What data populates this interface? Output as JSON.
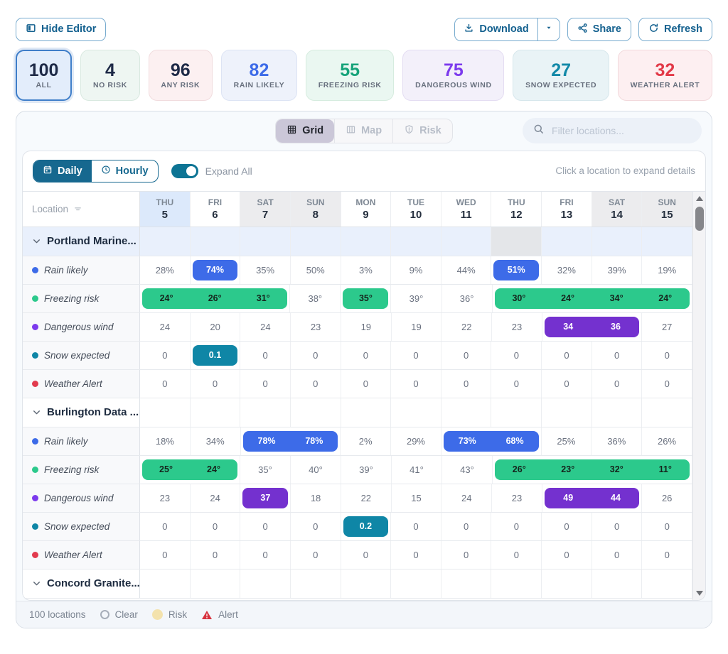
{
  "toolbar": {
    "hide_editor": "Hide Editor",
    "download": "Download",
    "share": "Share",
    "refresh": "Refresh"
  },
  "stats": [
    {
      "value": "100",
      "label": "ALL",
      "num_color": "#1e2a47",
      "bg": "#e3edfb",
      "border": "#3f7ec9",
      "selected": true
    },
    {
      "value": "4",
      "label": "NO RISK",
      "num_color": "#1e2a47",
      "bg": "#eef6f2",
      "border": "#d9e9e0",
      "selected": false
    },
    {
      "value": "96",
      "label": "ANY RISK",
      "num_color": "#1e2a47",
      "bg": "#fcf0f1",
      "border": "#f1dcde",
      "selected": false
    },
    {
      "value": "82",
      "label": "RAIN LIKELY",
      "num_color": "#3d6be8",
      "bg": "#eef2fb",
      "border": "#dde4f4",
      "selected": false
    },
    {
      "value": "55",
      "label": "FREEZING RISK",
      "num_color": "#17a37a",
      "bg": "#eaf7f1",
      "border": "#d6ecdf",
      "selected": false
    },
    {
      "value": "75",
      "label": "DANGEROUS WIND",
      "num_color": "#7c3aed",
      "bg": "#f3f0fa",
      "border": "#e4ddf2",
      "selected": false
    },
    {
      "value": "27",
      "label": "SNOW EXPECTED",
      "num_color": "#1289a8",
      "bg": "#e9f3f6",
      "border": "#d7e7ec",
      "selected": false
    },
    {
      "value": "32",
      "label": "WEATHER ALERT",
      "num_color": "#e23948",
      "bg": "#fdeff1",
      "border": "#f2d9dc",
      "selected": false
    }
  ],
  "view_tabs": [
    {
      "label": "Grid",
      "selected": true
    },
    {
      "label": "Map",
      "selected": false
    },
    {
      "label": "Risk",
      "selected": false
    }
  ],
  "search": {
    "placeholder": "Filter locations..."
  },
  "mode_tabs": [
    {
      "label": "Daily",
      "selected": true
    },
    {
      "label": "Hourly",
      "selected": false
    }
  ],
  "expand_all_label": "Expand All",
  "expand_all_on": true,
  "hint": "Click a location to expand details",
  "grid": {
    "location_header": "Location",
    "days": [
      {
        "name": "THU",
        "num": "5",
        "flag": "today"
      },
      {
        "name": "FRI",
        "num": "6",
        "flag": ""
      },
      {
        "name": "SAT",
        "num": "7",
        "flag": "weekend"
      },
      {
        "name": "SUN",
        "num": "8",
        "flag": "weekend"
      },
      {
        "name": "MON",
        "num": "9",
        "flag": ""
      },
      {
        "name": "TUE",
        "num": "10",
        "flag": ""
      },
      {
        "name": "WED",
        "num": "11",
        "flag": ""
      },
      {
        "name": "THU",
        "num": "12",
        "flag": ""
      },
      {
        "name": "FRI",
        "num": "13",
        "flag": ""
      },
      {
        "name": "SAT",
        "num": "14",
        "flag": "weekend"
      },
      {
        "name": "SUN",
        "num": "15",
        "flag": "weekend"
      }
    ],
    "metrics": {
      "rain": {
        "label": "Rain likely",
        "dot": "#3d6be8",
        "pill_bg": "#3d6be8",
        "pill_text": "#ffffff"
      },
      "freezing": {
        "label": "Freezing risk",
        "dot": "#2cc98c",
        "pill_bg": "#2cc98c",
        "pill_text": "#15241c"
      },
      "wind": {
        "label": "Dangerous wind",
        "dot": "#7c3aed",
        "pill_bg": "#7431cf",
        "pill_text": "#ffffff"
      },
      "snow": {
        "label": "Snow expected",
        "dot": "#0f86a6",
        "pill_bg": "#0f86a6",
        "pill_text": "#ffffff"
      },
      "alert": {
        "label": "Weather Alert",
        "dot": "#e23b4e",
        "pill_bg": "#e23b4e",
        "pill_text": "#ffffff"
      }
    },
    "groups": [
      {
        "name": "Portland Marine...",
        "tint": "#e9f0fc",
        "muted_col": 7,
        "rows": [
          {
            "metric": "rain",
            "cells": [
              {
                "v": [
                  "28%"
                ]
              },
              {
                "v": [
                  "74%"
                ],
                "hl": true
              },
              {
                "v": [
                  "35%"
                ]
              },
              {
                "v": [
                  "50%"
                ]
              },
              {
                "v": [
                  "3%"
                ]
              },
              {
                "v": [
                  "9%"
                ]
              },
              {
                "v": [
                  "44%"
                ]
              },
              {
                "v": [
                  "51%"
                ],
                "hl": true
              },
              {
                "v": [
                  "32%"
                ]
              },
              {
                "v": [
                  "39%"
                ]
              },
              {
                "v": [
                  "19%"
                ]
              }
            ]
          },
          {
            "metric": "freezing",
            "cells": [
              {
                "v": [
                  "24°",
                  "26°",
                  "31°"
                ],
                "hl": true
              },
              {
                "v": [
                  "38°"
                ]
              },
              {
                "v": [
                  "35°"
                ],
                "hl": true
              },
              {
                "v": [
                  "39°"
                ]
              },
              {
                "v": [
                  "36°"
                ]
              },
              {
                "v": [
                  "30°",
                  "24°",
                  "34°",
                  "24°"
                ],
                "hl": true
              }
            ]
          },
          {
            "metric": "wind",
            "cells": [
              {
                "v": [
                  "24"
                ]
              },
              {
                "v": [
                  "20"
                ]
              },
              {
                "v": [
                  "24"
                ]
              },
              {
                "v": [
                  "23"
                ]
              },
              {
                "v": [
                  "19"
                ]
              },
              {
                "v": [
                  "19"
                ]
              },
              {
                "v": [
                  "22"
                ]
              },
              {
                "v": [
                  "23"
                ]
              },
              {
                "v": [
                  "34",
                  "36"
                ],
                "hl": true
              },
              {
                "v": [
                  "27"
                ]
              }
            ]
          },
          {
            "metric": "snow",
            "cells": [
              {
                "v": [
                  "0"
                ]
              },
              {
                "v": [
                  "0.1"
                ],
                "hl": true
              },
              {
                "v": [
                  "0"
                ]
              },
              {
                "v": [
                  "0"
                ]
              },
              {
                "v": [
                  "0"
                ]
              },
              {
                "v": [
                  "0"
                ]
              },
              {
                "v": [
                  "0"
                ]
              },
              {
                "v": [
                  "0"
                ]
              },
              {
                "v": [
                  "0"
                ]
              },
              {
                "v": [
                  "0"
                ]
              },
              {
                "v": [
                  "0"
                ]
              }
            ]
          },
          {
            "metric": "alert",
            "cells": [
              {
                "v": [
                  "0"
                ]
              },
              {
                "v": [
                  "0"
                ]
              },
              {
                "v": [
                  "0"
                ]
              },
              {
                "v": [
                  "0"
                ]
              },
              {
                "v": [
                  "0"
                ]
              },
              {
                "v": [
                  "0"
                ]
              },
              {
                "v": [
                  "0"
                ]
              },
              {
                "v": [
                  "0"
                ]
              },
              {
                "v": [
                  "0"
                ]
              },
              {
                "v": [
                  "0"
                ]
              },
              {
                "v": [
                  "0"
                ]
              }
            ]
          }
        ]
      },
      {
        "name": "Burlington Data ...",
        "tint": "#ffffff",
        "muted_col": null,
        "rows": [
          {
            "metric": "rain",
            "cells": [
              {
                "v": [
                  "18%"
                ]
              },
              {
                "v": [
                  "34%"
                ]
              },
              {
                "v": [
                  "78%",
                  "78%"
                ],
                "hl": true
              },
              {
                "v": [
                  "2%"
                ]
              },
              {
                "v": [
                  "29%"
                ]
              },
              {
                "v": [
                  "73%",
                  "68%"
                ],
                "hl": true
              },
              {
                "v": [
                  "25%"
                ]
              },
              {
                "v": [
                  "36%"
                ]
              },
              {
                "v": [
                  "26%"
                ]
              }
            ]
          },
          {
            "metric": "freezing",
            "cells": [
              {
                "v": [
                  "25°",
                  "24°"
                ],
                "hl": true
              },
              {
                "v": [
                  "35°"
                ]
              },
              {
                "v": [
                  "40°"
                ]
              },
              {
                "v": [
                  "39°"
                ]
              },
              {
                "v": [
                  "41°"
                ]
              },
              {
                "v": [
                  "43°"
                ]
              },
              {
                "v": [
                  "26°",
                  "23°",
                  "32°",
                  "11°"
                ],
                "hl": true
              }
            ]
          },
          {
            "metric": "wind",
            "cells": [
              {
                "v": [
                  "23"
                ]
              },
              {
                "v": [
                  "24"
                ]
              },
              {
                "v": [
                  "37"
                ],
                "hl": true
              },
              {
                "v": [
                  "18"
                ]
              },
              {
                "v": [
                  "22"
                ]
              },
              {
                "v": [
                  "15"
                ]
              },
              {
                "v": [
                  "24"
                ]
              },
              {
                "v": [
                  "23"
                ]
              },
              {
                "v": [
                  "49",
                  "44"
                ],
                "hl": true
              },
              {
                "v": [
                  "26"
                ]
              }
            ]
          },
          {
            "metric": "snow",
            "cells": [
              {
                "v": [
                  "0"
                ]
              },
              {
                "v": [
                  "0"
                ]
              },
              {
                "v": [
                  "0"
                ]
              },
              {
                "v": [
                  "0"
                ]
              },
              {
                "v": [
                  "0.2"
                ],
                "hl": true
              },
              {
                "v": [
                  "0"
                ]
              },
              {
                "v": [
                  "0"
                ]
              },
              {
                "v": [
                  "0"
                ]
              },
              {
                "v": [
                  "0"
                ]
              },
              {
                "v": [
                  "0"
                ]
              },
              {
                "v": [
                  "0"
                ]
              }
            ]
          },
          {
            "metric": "alert",
            "cells": [
              {
                "v": [
                  "0"
                ]
              },
              {
                "v": [
                  "0"
                ]
              },
              {
                "v": [
                  "0"
                ]
              },
              {
                "v": [
                  "0"
                ]
              },
              {
                "v": [
                  "0"
                ]
              },
              {
                "v": [
                  "0"
                ]
              },
              {
                "v": [
                  "0"
                ]
              },
              {
                "v": [
                  "0"
                ]
              },
              {
                "v": [
                  "0"
                ]
              },
              {
                "v": [
                  "0"
                ]
              },
              {
                "v": [
                  "0"
                ]
              }
            ]
          }
        ]
      },
      {
        "name": "Concord Granite...",
        "tint": "#ffffff",
        "muted_col": null,
        "rows": []
      }
    ]
  },
  "footer": {
    "count": "100 locations",
    "legend": [
      {
        "label": "Clear",
        "kind": "clear"
      },
      {
        "label": "Risk",
        "kind": "risk"
      },
      {
        "label": "Alert",
        "kind": "alert"
      }
    ]
  }
}
